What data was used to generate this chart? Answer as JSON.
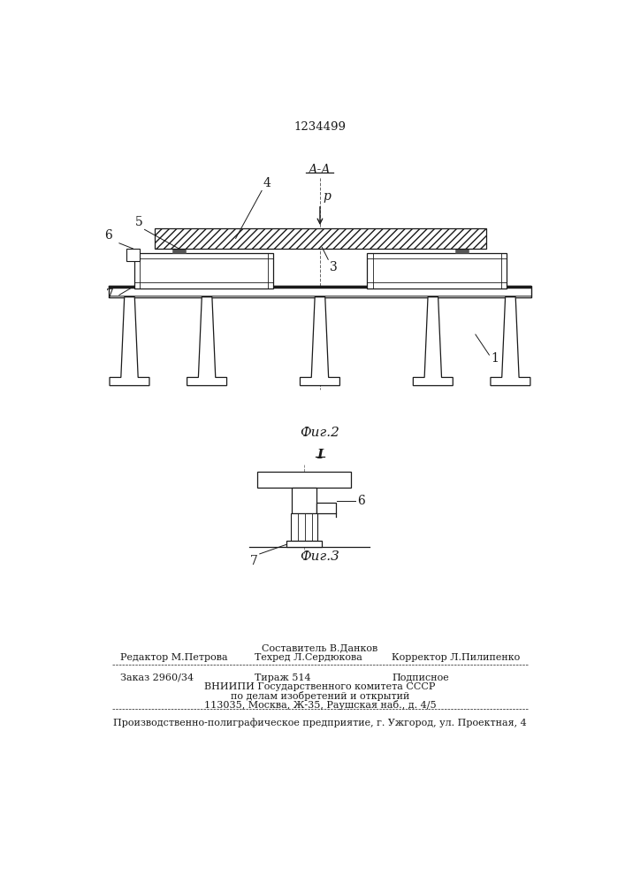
{
  "patent_number": "1234499",
  "fig2_label": "Фиг.2",
  "fig3_label": "Фиг.3",
  "bg_color": "#ffffff",
  "line_color": "#1a1a1a",
  "footer_line1": "Составитель В.Данков",
  "footer_line2_left": "Редактор М.Петрова",
  "footer_line2_mid": "Техред Л.Сердюкова",
  "footer_line2_right": "Корректор Л.Пилипенко",
  "footer_line3_left": "Заказ 2960/34",
  "footer_line3_mid": "Тираж 514",
  "footer_line3_right": "Подписное",
  "footer_line4": "ВНИИПИ Государственного комитета СССР",
  "footer_line5": "по делам изобретений и открытий",
  "footer_line6": "113035, Москва, Ж-35, Раушская наб., д. 4/5",
  "footer_line7": "Производственно-полиграфическое предприятие, г. Ужгород, ул. Проектная, 4"
}
